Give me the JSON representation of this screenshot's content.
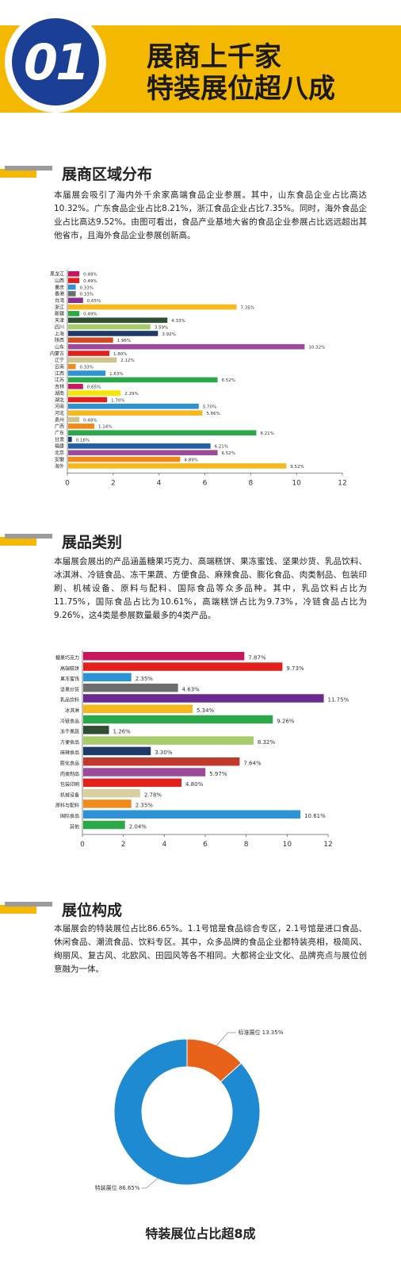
{
  "header": {
    "number": "01",
    "title_line1": "展商上千家",
    "title_line2": "特装展位超八成"
  },
  "sections": [
    {
      "title": "展商区域分布",
      "paragraph": "本届展会吸引了海内外千余家高端食品企业参展。其中，山东食品企业占比高达10.32%。广东食品企业占比8.21%，浙江食品企业占比7.35%。同时，海外食品企业占比高达9.52%。由图可看出，食品产业基地大省的食品企业参展占比远远超出其他省市，且海外食品企业参展创新高。"
    },
    {
      "title": "展品类别",
      "paragraph": "本届展会展出的产品涵盖糖果巧克力、高端糕饼、果冻蜜饯、坚果炒货、乳品饮料、冰淇淋、冷链食品、冻干果蔬、方便食品、麻辣食品、膨化食品、肉类制品、包装印刷、机械设备、原料与配料、国际食品等众多品种。其中，乳品饮料占比为11.75%，国际食品占比为10.61%，高端糕饼占比为9.73%，冷链食品占比为9.26%，这4类是参展数量最多的4类产品。"
    },
    {
      "title": "展位构成",
      "paragraph": "本届展会的特装展位占比86.65%。1.1号馆是食品综合专区，2.1号馆是进口食品、休闲食品、潮流食品、饮料专区。其中，众多品牌的食品企业都特装亮相，极简风、绚丽风、复古风、北欧风、田园风等各不相同。大都将企业文化、品牌亮点与展位创意融为一体。"
    }
  ],
  "footer_label": "特装展位占比超8成",
  "chart_data": [
    {
      "type": "bar",
      "orientation": "horizontal",
      "title": "",
      "xlabel": "",
      "ylabel": "",
      "xlim": [
        0,
        12
      ],
      "xticks": [
        0,
        2,
        4,
        6,
        8,
        10,
        12
      ],
      "grid": false,
      "categories": [
        "黑龙江",
        "山西",
        "重庆",
        "香港",
        "台湾",
        "浙江",
        "新疆",
        "天津",
        "四川",
        "上海",
        "陕西",
        "山东",
        "内蒙古",
        "辽宁",
        "云南",
        "江西",
        "江苏",
        "吉林",
        "湖南",
        "湖北",
        "河南",
        "河北",
        "贵州",
        "广西",
        "广东",
        "甘肃",
        "福建",
        "北京",
        "安徽",
        "海外"
      ],
      "values": [
        0.49,
        0.49,
        0.33,
        0.33,
        0.65,
        7.35,
        0.49,
        4.33,
        3.59,
        3.92,
        1.96,
        10.32,
        1.8,
        2.12,
        0.33,
        1.63,
        6.52,
        0.65,
        2.29,
        1.7,
        5.7,
        5.86,
        0.49,
        1.14,
        8.21,
        0.16,
        6.21,
        6.52,
        4.89,
        9.52
      ],
      "labels": [
        "0.49%",
        "0.49%",
        "0.33%",
        "0.33%",
        "0.65%",
        "7.35%",
        "0.49%",
        "4.33%",
        "3.59%",
        "3.92%",
        "1.96%",
        "10.32%",
        "1.80%",
        "2.12%",
        "0.33%",
        "1.63%",
        "6.52%",
        "0.65%",
        "2.29%",
        "1.70%",
        "5.70%",
        "5.86%",
        "0.49%",
        "1.14%",
        "8.21%",
        "0.16%",
        "6.21%",
        "6.52%",
        "4.89%",
        "9.52%"
      ],
      "colors": [
        "#c8175d",
        "#e3201b",
        "#2c94d6",
        "#6d6d6d",
        "#8b2f8f",
        "#f6b81a",
        "#2aa84a",
        "#2f4f33",
        "#a7cc6a",
        "#1f3a66",
        "#d14a22",
        "#9e4a9b",
        "#e3201b",
        "#cfc48c",
        "#f08a1a",
        "#2c94d6",
        "#2aa84a",
        "#c8175d",
        "#f5e500",
        "#e3201b",
        "#2c94d6",
        "#f6b81a",
        "#cfc48c",
        "#f08a1a",
        "#2aa84a",
        "#1f3a66",
        "#1f5fa8",
        "#9e4a9b",
        "#f08a1a",
        "#f6b81a"
      ]
    },
    {
      "type": "bar",
      "orientation": "horizontal",
      "title": "",
      "xlabel": "",
      "ylabel": "",
      "xlim": [
        0,
        12
      ],
      "xticks": [
        0,
        2,
        4,
        6,
        8,
        10,
        12
      ],
      "grid": false,
      "categories": [
        "糖果巧克力",
        "高端糕饼",
        "果冻蜜饯",
        "坚果炒货",
        "乳品饮料",
        "冰淇淋",
        "冷链食品",
        "冻干果蔬",
        "方便食品",
        "麻辣食品",
        "膨化食品",
        "肉类制品",
        "包装印刷",
        "机械设备",
        "原料与配料",
        "国际食品",
        "其他"
      ],
      "values": [
        7.87,
        9.73,
        2.35,
        4.63,
        11.75,
        5.34,
        9.26,
        1.26,
        8.32,
        3.3,
        7.64,
        5.97,
        4.8,
        2.78,
        2.35,
        10.61,
        2.04
      ],
      "labels": [
        "7.87%",
        "9.73%",
        "2.35%",
        "4.63%",
        "11.75%",
        "5.34%",
        "9.26%",
        "1.26%",
        "8.32%",
        "3.30%",
        "7.64%",
        "5.97%",
        "4.80%",
        "2.78%",
        "2.35%",
        "10.61%",
        "2.04%"
      ],
      "colors": [
        "#c8175d",
        "#e3201b",
        "#2c94d6",
        "#6d6d6d",
        "#6a2a90",
        "#f6b81a",
        "#2aa84a",
        "#2f4f33",
        "#a7cc6a",
        "#1f3a66",
        "#c0392b",
        "#9e4a9b",
        "#e3201b",
        "#d9cfa0",
        "#f08a1a",
        "#2c94d6",
        "#2aa84a"
      ]
    },
    {
      "type": "pie",
      "donut": true,
      "title": "",
      "slices": [
        {
          "label": "标准展位",
          "value": 13.35,
          "text": "标准展位 13.35%",
          "color": "#e8621a"
        },
        {
          "label": "特装展位",
          "value": 86.65,
          "text": "特装展位 86.65%",
          "color": "#1d8ad1"
        }
      ]
    }
  ]
}
